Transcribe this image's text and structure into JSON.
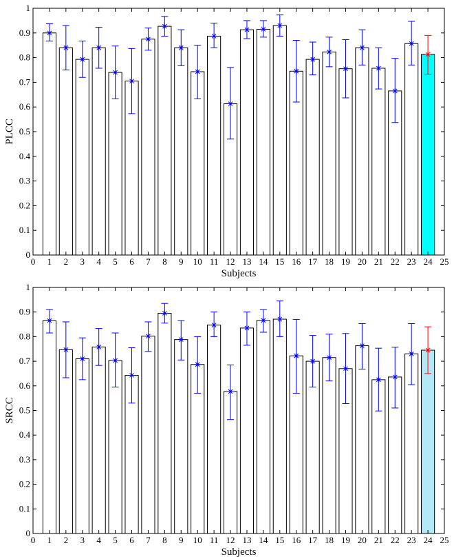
{
  "chart_data": [
    {
      "type": "bar",
      "ylabel": "PLCC",
      "xlabel": "Subjects",
      "ylim": [
        0,
        1
      ],
      "xlim": [
        0,
        25
      ],
      "yticks": [
        "0",
        "0.1",
        "0.2",
        "0.3",
        "0.4",
        "0.5",
        "0.6",
        "0.7",
        "0.8",
        "0.9",
        "1"
      ],
      "xticks": [
        "0",
        "1",
        "2",
        "3",
        "4",
        "5",
        "6",
        "7",
        "8",
        "9",
        "10",
        "11",
        "12",
        "13",
        "14",
        "15",
        "16",
        "17",
        "18",
        "19",
        "20",
        "21",
        "22",
        "23",
        "24",
        "25"
      ],
      "categories": [
        1,
        2,
        3,
        4,
        5,
        6,
        7,
        8,
        9,
        10,
        11,
        12,
        13,
        14,
        15,
        16,
        17,
        18,
        19,
        20,
        21,
        22,
        23,
        24
      ],
      "values": [
        0.9,
        0.84,
        0.793,
        0.84,
        0.74,
        0.705,
        0.875,
        0.927,
        0.84,
        0.743,
        0.887,
        0.613,
        0.913,
        0.915,
        0.93,
        0.745,
        0.793,
        0.823,
        0.755,
        0.84,
        0.757,
        0.665,
        0.857,
        0.813
      ],
      "means": [
        0.9,
        0.84,
        0.793,
        0.84,
        0.74,
        0.705,
        0.875,
        0.927,
        0.84,
        0.743,
        0.887,
        0.613,
        0.913,
        0.915,
        0.93,
        0.745,
        0.793,
        0.823,
        0.755,
        0.84,
        0.757,
        0.665,
        0.857,
        0.813
      ],
      "err_low": [
        0.867,
        0.75,
        0.72,
        0.757,
        0.633,
        0.573,
        0.83,
        0.887,
        0.767,
        0.633,
        0.84,
        0.47,
        0.877,
        0.883,
        0.887,
        0.62,
        0.73,
        0.763,
        0.637,
        0.77,
        0.673,
        0.537,
        0.77,
        0.733
      ],
      "err_high": [
        0.937,
        0.93,
        0.867,
        0.923,
        0.847,
        0.837,
        0.92,
        0.967,
        0.913,
        0.85,
        0.94,
        0.76,
        0.95,
        0.95,
        0.973,
        0.87,
        0.863,
        0.883,
        0.873,
        0.913,
        0.84,
        0.797,
        0.947,
        0.89
      ],
      "highlight_index": 23,
      "colors": {
        "bar": "#ffffff",
        "highlight_bar": "#00ffff",
        "error_bar": "#0000ff",
        "highlight_error_bar": "#ff0000",
        "axes": "#000000"
      }
    },
    {
      "type": "bar",
      "ylabel": "SRCC",
      "xlabel": "Subjects",
      "ylim": [
        0,
        1
      ],
      "xlim": [
        0,
        25
      ],
      "yticks": [
        "0",
        "0.1",
        "0.2",
        "0.3",
        "0.4",
        "0.5",
        "0.6",
        "0.7",
        "0.8",
        "0.9",
        "1"
      ],
      "xticks": [
        "0",
        "1",
        "2",
        "3",
        "4",
        "5",
        "6",
        "7",
        "8",
        "9",
        "10",
        "11",
        "12",
        "13",
        "14",
        "15",
        "16",
        "17",
        "18",
        "19",
        "20",
        "21",
        "22",
        "23",
        "24",
        "25"
      ],
      "categories": [
        1,
        2,
        3,
        4,
        5,
        6,
        7,
        8,
        9,
        10,
        11,
        12,
        13,
        14,
        15,
        16,
        17,
        18,
        19,
        20,
        21,
        22,
        23,
        24
      ],
      "values": [
        0.865,
        0.747,
        0.71,
        0.758,
        0.703,
        0.643,
        0.802,
        0.895,
        0.788,
        0.687,
        0.847,
        0.577,
        0.835,
        0.866,
        0.871,
        0.722,
        0.7,
        0.715,
        0.67,
        0.763,
        0.625,
        0.636,
        0.73,
        0.745
      ],
      "means": [
        0.865,
        0.747,
        0.71,
        0.758,
        0.703,
        0.643,
        0.802,
        0.895,
        0.788,
        0.687,
        0.847,
        0.577,
        0.835,
        0.866,
        0.871,
        0.722,
        0.7,
        0.715,
        0.67,
        0.763,
        0.625,
        0.636,
        0.73,
        0.745
      ],
      "err_low": [
        0.815,
        0.633,
        0.625,
        0.683,
        0.595,
        0.53,
        0.74,
        0.855,
        0.705,
        0.57,
        0.8,
        0.463,
        0.765,
        0.818,
        0.8,
        0.57,
        0.595,
        0.62,
        0.528,
        0.668,
        0.498,
        0.51,
        0.605,
        0.65
      ],
      "err_high": [
        0.91,
        0.86,
        0.795,
        0.833,
        0.815,
        0.755,
        0.86,
        0.935,
        0.865,
        0.8,
        0.9,
        0.685,
        0.9,
        0.91,
        0.945,
        0.87,
        0.805,
        0.81,
        0.813,
        0.853,
        0.753,
        0.757,
        0.853,
        0.84
      ],
      "highlight_index": 23,
      "colors": {
        "bar": "#ffffff",
        "highlight_bar": "#b3e8f7",
        "error_bar": "#0000ff",
        "highlight_error_bar": "#ff0000",
        "axes": "#000000"
      }
    }
  ]
}
